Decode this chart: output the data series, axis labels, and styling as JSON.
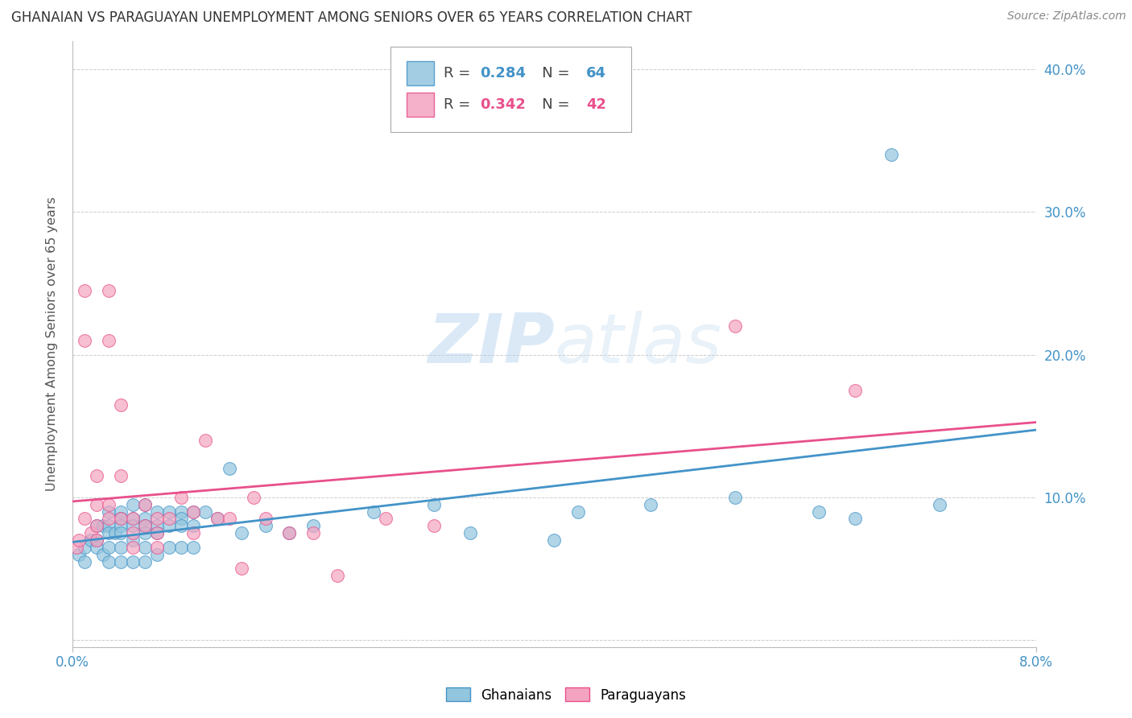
{
  "title": "GHANAIAN VS PARAGUAYAN UNEMPLOYMENT AMONG SENIORS OVER 65 YEARS CORRELATION CHART",
  "source": "Source: ZipAtlas.com",
  "ylabel": "Unemployment Among Seniors over 65 years",
  "xlim": [
    0.0,
    0.08
  ],
  "ylim": [
    -0.005,
    0.42
  ],
  "xticks": [
    0.0,
    0.08
  ],
  "xtick_labels": [
    "0.0%",
    "8.0%"
  ],
  "yticks": [
    0.0,
    0.1,
    0.2,
    0.3,
    0.4
  ],
  "ytick_labels_right": [
    "",
    "10.0%",
    "20.0%",
    "30.0%",
    "40.0%"
  ],
  "ghana_color": "#92c5de",
  "para_color": "#f4a4c0",
  "ghana_edge_color": "#4393c8",
  "para_edge_color": "#e8508c",
  "ghana_line_color": "#4393c8",
  "para_line_color": "#e8508c",
  "tick_color": "#4393c8",
  "ghana_R": 0.284,
  "ghana_N": 64,
  "para_R": 0.342,
  "para_N": 42,
  "ghana_x": [
    0.0005,
    0.001,
    0.001,
    0.0015,
    0.002,
    0.002,
    0.002,
    0.0025,
    0.0025,
    0.003,
    0.003,
    0.003,
    0.003,
    0.003,
    0.0035,
    0.004,
    0.004,
    0.004,
    0.004,
    0.004,
    0.004,
    0.005,
    0.005,
    0.005,
    0.005,
    0.005,
    0.006,
    0.006,
    0.006,
    0.006,
    0.006,
    0.006,
    0.007,
    0.007,
    0.007,
    0.007,
    0.008,
    0.008,
    0.008,
    0.009,
    0.009,
    0.009,
    0.009,
    0.01,
    0.01,
    0.01,
    0.011,
    0.012,
    0.013,
    0.014,
    0.016,
    0.018,
    0.02,
    0.025,
    0.03,
    0.033,
    0.04,
    0.042,
    0.048,
    0.055,
    0.062,
    0.065,
    0.068,
    0.072
  ],
  "ghana_y": [
    0.06,
    0.065,
    0.055,
    0.07,
    0.08,
    0.07,
    0.065,
    0.08,
    0.06,
    0.09,
    0.08,
    0.075,
    0.065,
    0.055,
    0.075,
    0.09,
    0.085,
    0.08,
    0.075,
    0.065,
    0.055,
    0.095,
    0.085,
    0.08,
    0.07,
    0.055,
    0.095,
    0.085,
    0.08,
    0.075,
    0.065,
    0.055,
    0.09,
    0.08,
    0.075,
    0.06,
    0.09,
    0.08,
    0.065,
    0.09,
    0.085,
    0.08,
    0.065,
    0.09,
    0.08,
    0.065,
    0.09,
    0.085,
    0.12,
    0.075,
    0.08,
    0.075,
    0.08,
    0.09,
    0.095,
    0.075,
    0.07,
    0.09,
    0.095,
    0.1,
    0.09,
    0.085,
    0.34,
    0.095
  ],
  "para_x": [
    0.0003,
    0.0005,
    0.001,
    0.001,
    0.001,
    0.0015,
    0.002,
    0.002,
    0.002,
    0.002,
    0.003,
    0.003,
    0.003,
    0.003,
    0.004,
    0.004,
    0.004,
    0.005,
    0.005,
    0.005,
    0.006,
    0.006,
    0.007,
    0.007,
    0.007,
    0.008,
    0.009,
    0.01,
    0.01,
    0.011,
    0.012,
    0.013,
    0.014,
    0.015,
    0.016,
    0.018,
    0.02,
    0.022,
    0.026,
    0.03,
    0.055,
    0.065
  ],
  "para_y": [
    0.065,
    0.07,
    0.245,
    0.21,
    0.085,
    0.075,
    0.115,
    0.095,
    0.08,
    0.07,
    0.245,
    0.21,
    0.095,
    0.085,
    0.165,
    0.115,
    0.085,
    0.085,
    0.075,
    0.065,
    0.095,
    0.08,
    0.085,
    0.075,
    0.065,
    0.085,
    0.1,
    0.09,
    0.075,
    0.14,
    0.085,
    0.085,
    0.05,
    0.1,
    0.085,
    0.075,
    0.075,
    0.045,
    0.085,
    0.08,
    0.22,
    0.175
  ]
}
